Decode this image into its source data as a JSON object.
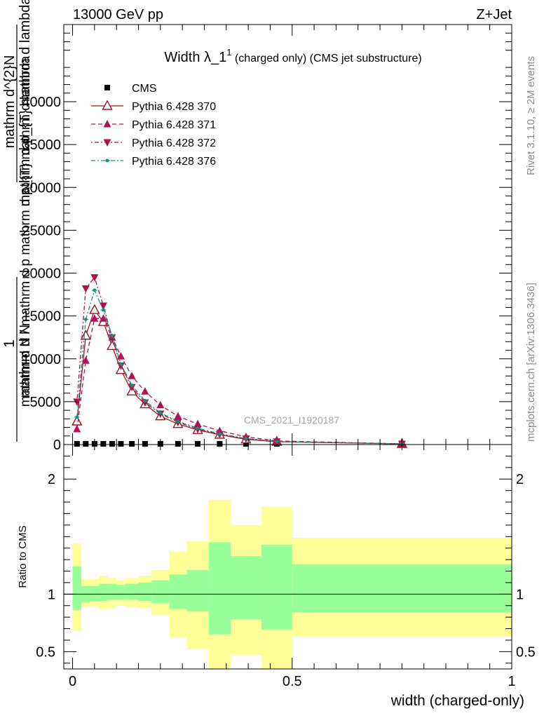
{
  "header": {
    "left": "13000 GeV pp",
    "right": "Z+Jet"
  },
  "side_labels": {
    "rivet": "Rivet 3.1.10, ≥ 2M events",
    "mcplots": "mcplots.cern.ch [arXiv:1306.3436]"
  },
  "watermark": "CMS_2021_I1920187",
  "chart_data": [
    {
      "type": "line",
      "title_main": "Width λ_1",
      "title_sup": "1",
      "title_rest": " (charged only) (CMS jet substructure)",
      "ylabel_num": "1",
      "ylabel_den": "mathrm d N",
      "ylabel_frac_num": "mathrm d^{2}N",
      "ylabel_frac_den": "mathrm d p_{T} mathrm d lambda",
      "ylabel_text": "mathrm d N / mathrm d p mathrm d p_{T} mathrm d lambda",
      "xlim": [
        -0.02,
        1.0
      ],
      "ylim": [
        0,
        49000
      ],
      "yticks": [
        {
          "v": 0,
          "label": "0"
        },
        {
          "v": 5000,
          "label": "5000"
        },
        {
          "v": 10000,
          "label": "10000"
        },
        {
          "v": 15000,
          "label": "15000"
        },
        {
          "v": 20000,
          "label": "20000"
        },
        {
          "v": 25000,
          "label": "25000"
        },
        {
          "v": 30000,
          "label": "30000"
        },
        {
          "v": 35000,
          "label": "35000"
        },
        {
          "v": 40000,
          "label": "40000"
        }
      ],
      "legend_position": "top-left",
      "x": [
        0.01,
        0.03,
        0.05,
        0.07,
        0.09,
        0.11,
        0.135,
        0.165,
        0.2,
        0.24,
        0.285,
        0.335,
        0.395,
        0.465,
        0.75
      ],
      "series": [
        {
          "name": "CMS",
          "color": "#000000",
          "marker": "square",
          "values": [
            5,
            5,
            5,
            5,
            5,
            5,
            5,
            5,
            5,
            5,
            5,
            5,
            5,
            5,
            5
          ]
        },
        {
          "name": "Pythia 6.428 370",
          "color": "#a0141e",
          "marker": "triangle-open",
          "dash": "",
          "values": [
            2700,
            12700,
            15700,
            14300,
            11500,
            8700,
            6200,
            4700,
            3300,
            2400,
            1700,
            1150,
            600,
            330,
            40
          ]
        },
        {
          "name": "Pythia 6.428 371",
          "color": "#b0125a",
          "marker": "triangle-up",
          "dash": "6,4",
          "values": [
            1800,
            9800,
            14700,
            14700,
            12500,
            10300,
            8000,
            6200,
            4600,
            3300,
            2400,
            1600,
            900,
            420,
            50
          ]
        },
        {
          "name": "Pythia 6.428 372",
          "color": "#b0124a",
          "marker": "triangle-down",
          "dash": "2,3,6,3",
          "values": [
            5000,
            18200,
            19500,
            16200,
            12500,
            9200,
            6700,
            4900,
            3600,
            2600,
            1800,
            1200,
            700,
            350,
            40
          ]
        },
        {
          "name": "Pythia 6.428 376",
          "color": "#12907a",
          "marker": "dot",
          "dash": "6,3,2,3",
          "values": [
            3200,
            14600,
            18000,
            15700,
            12700,
            9400,
            6900,
            5100,
            3700,
            2700,
            1900,
            1250,
            700,
            340,
            40
          ]
        }
      ]
    },
    {
      "type": "area",
      "ylabel": "Ratio to CMS",
      "xlabel": "width (charged-only)",
      "xlim": [
        -0.02,
        1.0
      ],
      "ylim": [
        0.35,
        2.3
      ],
      "reference_line": 1,
      "xticks": [
        {
          "v": 0,
          "label": "0"
        },
        {
          "v": 0.5,
          "label": "0.5"
        },
        {
          "v": 1,
          "label": "1"
        }
      ],
      "yticks": [
        {
          "v": 0.5,
          "label": "0.5"
        },
        {
          "v": 1,
          "label": "1"
        },
        {
          "v": 2,
          "label": "2"
        }
      ],
      "bins": [
        {
          "lo": 0.0,
          "hi": 0.02,
          "in_lo": 0.86,
          "in_hi": 1.24,
          "out_lo": 0.68,
          "out_hi": 1.44
        },
        {
          "lo": 0.02,
          "hi": 0.04,
          "in_lo": 0.93,
          "in_hi": 1.07,
          "out_lo": 0.89,
          "out_hi": 1.13
        },
        {
          "lo": 0.04,
          "hi": 0.06,
          "in_lo": 0.94,
          "in_hi": 1.07,
          "out_lo": 0.89,
          "out_hi": 1.13
        },
        {
          "lo": 0.06,
          "hi": 0.08,
          "in_lo": 0.94,
          "in_hi": 1.09,
          "out_lo": 0.87,
          "out_hi": 1.16
        },
        {
          "lo": 0.08,
          "hi": 0.1,
          "in_lo": 0.95,
          "in_hi": 1.09,
          "out_lo": 0.88,
          "out_hi": 1.14
        },
        {
          "lo": 0.1,
          "hi": 0.12,
          "in_lo": 0.95,
          "in_hi": 1.08,
          "out_lo": 0.9,
          "out_hi": 1.12
        },
        {
          "lo": 0.12,
          "hi": 0.15,
          "in_lo": 0.95,
          "in_hi": 1.09,
          "out_lo": 0.89,
          "out_hi": 1.14
        },
        {
          "lo": 0.15,
          "hi": 0.18,
          "in_lo": 0.94,
          "in_hi": 1.1,
          "out_lo": 0.88,
          "out_hi": 1.16
        },
        {
          "lo": 0.18,
          "hi": 0.22,
          "in_lo": 0.92,
          "in_hi": 1.12,
          "out_lo": 0.82,
          "out_hi": 1.21
        },
        {
          "lo": 0.22,
          "hi": 0.26,
          "in_lo": 0.87,
          "in_hi": 1.17,
          "out_lo": 0.62,
          "out_hi": 1.37
        },
        {
          "lo": 0.26,
          "hi": 0.31,
          "in_lo": 0.85,
          "in_hi": 1.21,
          "out_lo": 0.52,
          "out_hi": 1.46
        },
        {
          "lo": 0.31,
          "hi": 0.36,
          "in_lo": 0.65,
          "in_hi": 1.45,
          "out_lo": 0.35,
          "out_hi": 1.82
        },
        {
          "lo": 0.36,
          "hi": 0.43,
          "in_lo": 0.78,
          "in_hi": 1.33,
          "out_lo": 0.47,
          "out_hi": 1.6
        },
        {
          "lo": 0.43,
          "hi": 0.5,
          "in_lo": 0.69,
          "in_hi": 1.43,
          "out_lo": 0.35,
          "out_hi": 1.76
        },
        {
          "lo": 0.5,
          "hi": 1.0,
          "in_lo": 0.84,
          "in_hi": 1.26,
          "out_lo": 0.63,
          "out_hi": 1.49
        }
      ],
      "colors": {
        "inner": "#99ff99",
        "outer": "#ffff99"
      }
    }
  ]
}
